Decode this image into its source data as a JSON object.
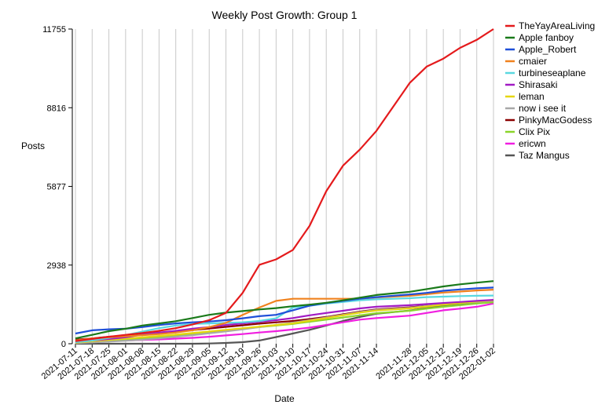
{
  "chart_data": {
    "type": "line",
    "title": "Weekly Post Growth: Group 1",
    "xlabel": "Date",
    "ylabel": "Posts",
    "yticks": [
      0,
      2938,
      5877,
      8816,
      11755
    ],
    "ylim": [
      0,
      11755
    ],
    "grid": "vertical",
    "legend_position": "right",
    "x": [
      "2021-07-11",
      "2021-07-18",
      "2021-07-25",
      "2021-08-01",
      "2021-08-08",
      "2021-08-15",
      "2021-08-22",
      "2021-08-29",
      "2021-09-05",
      "2021-09-12",
      "2021-09-19",
      "2021-09-26",
      "2021-10-03",
      "2021-10-10",
      "2021-10-17",
      "2021-10-24",
      "2021-10-31",
      "2021-11-07",
      "2021-11-14",
      "2021-11-28",
      "2021-12-05",
      "2021-12-12",
      "2021-12-19",
      "2021-12-26",
      "2022-01-02"
    ],
    "series": [
      {
        "name": "TheYayAreaLiving",
        "color": "#e41a1c",
        "values": [
          100,
          180,
          260,
          330,
          400,
          480,
          580,
          720,
          880,
          1150,
          1900,
          2950,
          3150,
          3500,
          4400,
          5700,
          6650,
          7250,
          7950,
          9750,
          10350,
          10650,
          11050,
          11350,
          11755
        ]
      },
      {
        "name": "Apple fanboy",
        "color": "#1a7a1a",
        "values": [
          200,
          330,
          470,
          560,
          680,
          760,
          840,
          960,
          1080,
          1160,
          1220,
          1280,
          1330,
          1400,
          1460,
          1530,
          1620,
          1720,
          1820,
          1940,
          2040,
          2140,
          2220,
          2280,
          2340
        ]
      },
      {
        "name": "Apple_Robert",
        "color": "#1f4fd8",
        "values": [
          380,
          500,
          540,
          560,
          620,
          700,
          760,
          800,
          830,
          880,
          950,
          1030,
          1080,
          1250,
          1420,
          1520,
          1600,
          1680,
          1740,
          1840,
          1900,
          1980,
          2030,
          2070,
          2100
        ]
      },
      {
        "name": "cmaier",
        "color": "#f0821e",
        "values": [
          120,
          200,
          240,
          280,
          320,
          360,
          420,
          500,
          620,
          780,
          1080,
          1350,
          1600,
          1680,
          1680,
          1680,
          1680,
          1680,
          1730,
          1790,
          1850,
          1910,
          1950,
          1990,
          2020
        ]
      },
      {
        "name": "turbineseaplane",
        "color": "#5ad8e0",
        "values": [
          60,
          120,
          220,
          320,
          450,
          580,
          680,
          740,
          760,
          780,
          800,
          850,
          950,
          1350,
          1420,
          1500,
          1560,
          1620,
          1660,
          1700,
          1740,
          1760,
          1780,
          1790,
          1800
        ]
      },
      {
        "name": "Shirasaki",
        "color": "#a11bc4",
        "values": [
          60,
          120,
          180,
          240,
          340,
          420,
          480,
          560,
          620,
          700,
          760,
          820,
          880,
          960,
          1060,
          1150,
          1230,
          1320,
          1380,
          1440,
          1480,
          1520,
          1560,
          1600,
          1640
        ]
      },
      {
        "name": "leman",
        "color": "#e6d60f",
        "values": [
          40,
          90,
          140,
          190,
          240,
          290,
          340,
          400,
          460,
          520,
          580,
          640,
          700,
          760,
          860,
          960,
          1060,
          1160,
          1240,
          1320,
          1390,
          1460,
          1520,
          1580,
          1620
        ]
      },
      {
        "name": "now i see it",
        "color": "#a8a8a8",
        "values": [
          20,
          50,
          80,
          110,
          150,
          200,
          260,
          320,
          390,
          460,
          540,
          620,
          700,
          790,
          880,
          980,
          1080,
          1180,
          1260,
          1340,
          1410,
          1470,
          1520,
          1560,
          1600
        ]
      },
      {
        "name": "PinkyMacGodess",
        "color": "#8b0000",
        "values": [
          150,
          200,
          260,
          300,
          350,
          400,
          450,
          510,
          570,
          630,
          690,
          750,
          800,
          850,
          920,
          1000,
          1100,
          1200,
          1280,
          1360,
          1420,
          1480,
          1530,
          1580,
          1620
        ]
      },
      {
        "name": "Clix Pix",
        "color": "#8ad52a",
        "values": [
          30,
          70,
          110,
          150,
          200,
          250,
          300,
          360,
          420,
          490,
          560,
          620,
          680,
          740,
          820,
          900,
          980,
          1060,
          1140,
          1230,
          1310,
          1380,
          1440,
          1500,
          1550
        ]
      },
      {
        "name": "ericwn",
        "color": "#f01ee0",
        "values": [
          50,
          80,
          100,
          120,
          140,
          160,
          190,
          220,
          260,
          310,
          360,
          420,
          470,
          530,
          600,
          700,
          800,
          900,
          960,
          1050,
          1150,
          1250,
          1310,
          1380,
          1500
        ]
      },
      {
        "name": "Taz Mangus",
        "color": "#555555",
        "values": [
          0,
          0,
          0,
          0,
          0,
          0,
          0,
          0,
          10,
          30,
          60,
          120,
          250,
          380,
          520,
          680,
          850,
          1000,
          1120,
          1240,
          1340,
          1420,
          1490,
          1550,
          1600
        ]
      }
    ]
  }
}
